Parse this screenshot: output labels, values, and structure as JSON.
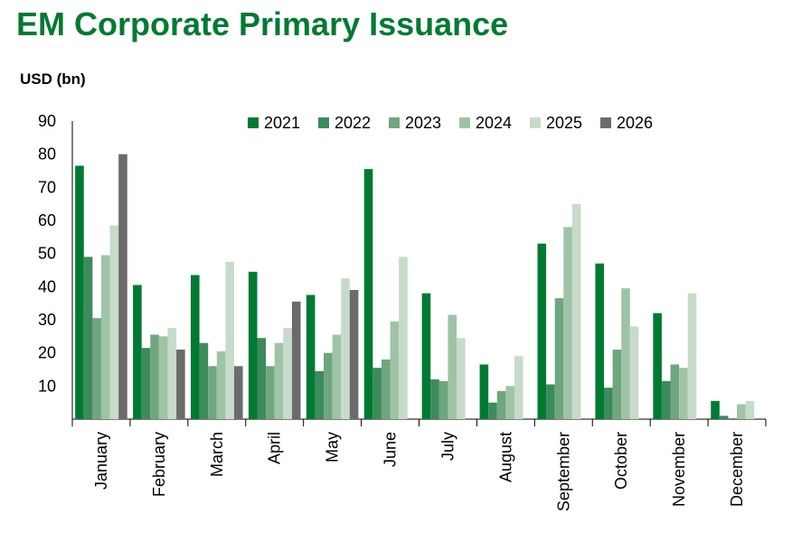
{
  "title": "EM Corporate Primary Issuance",
  "unit_label": "USD (bn)",
  "chart_data": {
    "type": "bar",
    "categories": [
      "January",
      "February",
      "March",
      "April",
      "May",
      "June",
      "July",
      "August",
      "September",
      "October",
      "November",
      "December"
    ],
    "series": [
      {
        "name": "2021",
        "color": "#007a33",
        "values": [
          76.5,
          40.5,
          43.5,
          44.5,
          37.5,
          75.5,
          38,
          16.5,
          53,
          47,
          32,
          5.5
        ]
      },
      {
        "name": "2022",
        "color": "#3d8b5a",
        "values": [
          49,
          21.5,
          23,
          24.5,
          14.5,
          15.5,
          12,
          5,
          10.5,
          9.5,
          11.5,
          1
        ]
      },
      {
        "name": "2023",
        "color": "#6fa67f",
        "values": [
          30.5,
          25.5,
          16,
          16,
          20,
          18,
          11.5,
          8.5,
          36.5,
          21,
          16.5,
          null
        ]
      },
      {
        "name": "2024",
        "color": "#9fc3a6",
        "values": [
          49.5,
          25,
          20.5,
          23,
          25.5,
          29.5,
          31.5,
          10,
          58,
          39.5,
          15.5,
          4.5
        ]
      },
      {
        "name": "2025",
        "color": "#c6dbc9",
        "values": [
          58.5,
          27.5,
          47.5,
          27.5,
          42.5,
          49,
          24.5,
          19,
          65,
          28,
          38,
          5.5
        ]
      },
      {
        "name": "2026",
        "color": "#6b6b6b",
        "values": [
          80,
          21,
          16,
          35.5,
          39,
          null,
          null,
          null,
          null,
          null,
          null,
          null
        ]
      }
    ],
    "ylim": [
      0,
      90
    ],
    "yticks": [
      10,
      20,
      30,
      40,
      50,
      60,
      70,
      80,
      90
    ],
    "legend_position": "top-center",
    "grid": false
  }
}
